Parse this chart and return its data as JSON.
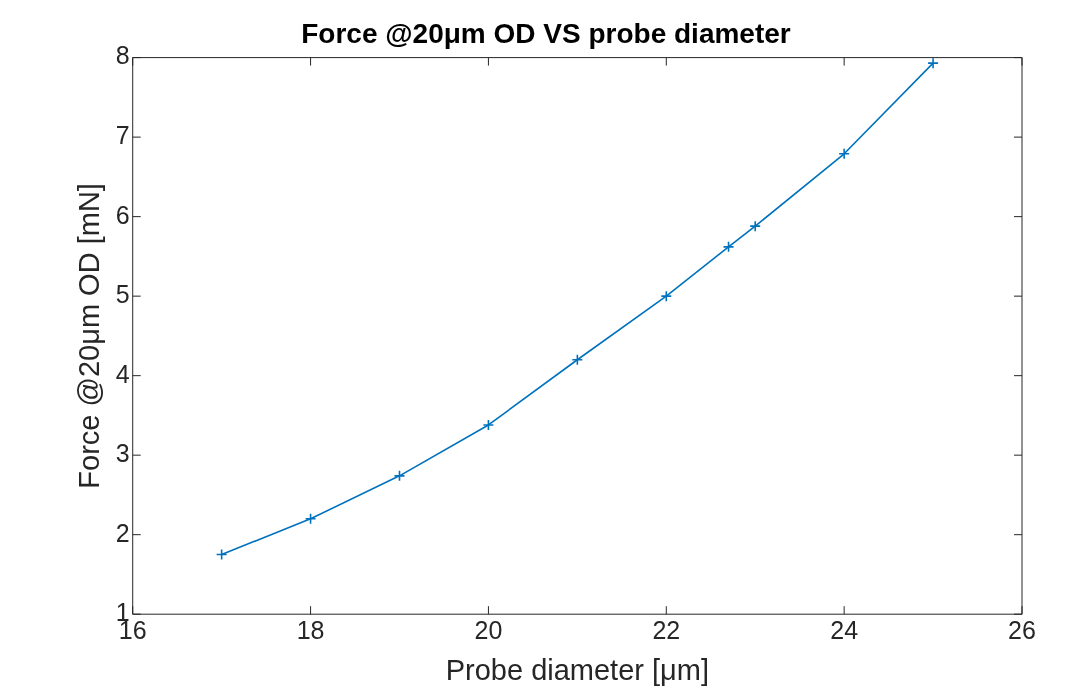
{
  "chart_data": {
    "type": "line",
    "title": "Force @20μm OD VS probe diameter",
    "xlabel": "Probe diameter [μm]",
    "ylabel": "Force @20μm OD [mN]",
    "x": [
      17,
      18,
      19,
      20,
      21,
      22,
      22.7,
      23,
      24,
      25
    ],
    "series": [
      {
        "color": "#0072bd",
        "values": [
          1.75,
          2.2,
          2.74,
          3.38,
          4.2,
          5.0,
          5.62,
          5.88,
          6.79,
          7.93
        ]
      }
    ],
    "xlim": [
      16,
      26
    ],
    "xticks": [
      16,
      18,
      20,
      22,
      24,
      26
    ],
    "ylim": [
      1,
      8
    ],
    "yticks": [
      1,
      2,
      3,
      4,
      5,
      6,
      7,
      8
    ],
    "grid": false,
    "legend": false,
    "marker": "cross",
    "line_style": "solid"
  }
}
